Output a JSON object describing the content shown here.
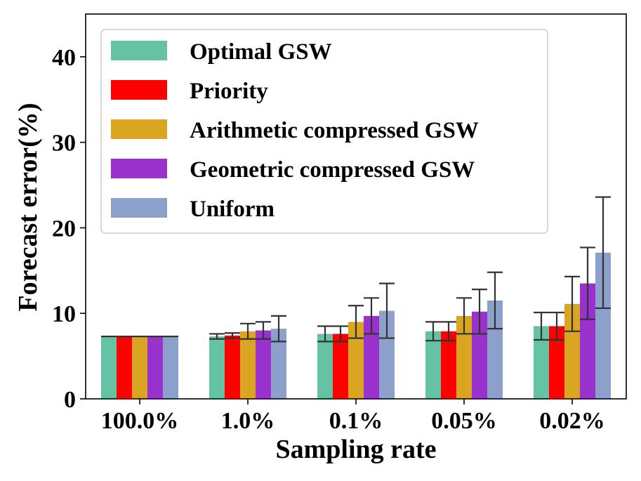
{
  "chart_data": {
    "type": "bar",
    "title": "",
    "xlabel": "Sampling rate",
    "ylabel": "Forecast error(%)",
    "ylim": [
      0,
      45
    ],
    "yticks": [
      "0",
      "10",
      "20",
      "30",
      "40"
    ],
    "categories": [
      "100.0%",
      "1.0%",
      "0.1%",
      "0.05%",
      "0.02%"
    ],
    "legend_position": "top-left",
    "grid": false,
    "series": [
      {
        "name": "Optimal GSW",
        "color": "#66c2a5",
        "values": [
          7.3,
          7.3,
          7.6,
          7.9,
          8.5
        ],
        "errors": [
          0,
          0.3,
          0.9,
          1.1,
          1.6
        ]
      },
      {
        "name": "Priority",
        "color": "#ff0000",
        "values": [
          7.3,
          7.4,
          7.6,
          7.9,
          8.5
        ],
        "errors": [
          0,
          0.3,
          0.9,
          1.1,
          1.6
        ]
      },
      {
        "name": "Arithmetic compressed GSW",
        "color": "#daa520",
        "values": [
          7.3,
          7.9,
          9.0,
          9.7,
          11.1
        ],
        "errors": [
          0,
          0.9,
          1.9,
          2.1,
          3.2
        ]
      },
      {
        "name": "Geometric compressed GSW",
        "color": "#9932cc",
        "values": [
          7.3,
          8.0,
          9.7,
          10.2,
          13.5
        ],
        "errors": [
          0,
          1.0,
          2.1,
          2.6,
          4.2
        ]
      },
      {
        "name": "Uniform",
        "color": "#8da0cb",
        "values": [
          7.3,
          8.2,
          10.3,
          11.5,
          17.1
        ],
        "errors": [
          0,
          1.5,
          3.2,
          3.3,
          6.5
        ]
      }
    ]
  }
}
